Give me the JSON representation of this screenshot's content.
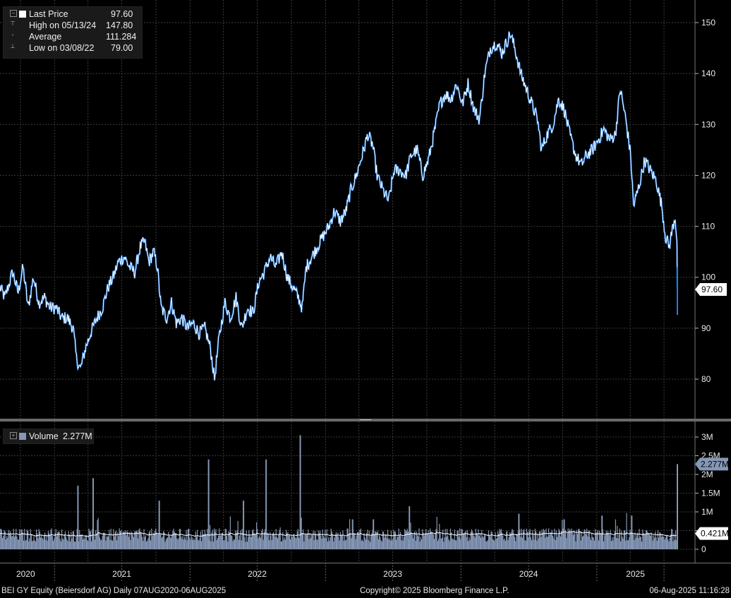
{
  "legend": {
    "last_price_label": "Last Price",
    "last_price_value": "97.60",
    "high_label": "High on 05/13/24",
    "high_value": "147.80",
    "average_label": "Average",
    "average_value": "111.284",
    "low_label": "Low on 03/08/22",
    "low_value": "79.00"
  },
  "volume_legend": {
    "label": "Volume",
    "value": "2.277M"
  },
  "footer": {
    "left": "BEI GY Equity (Beiersdorf AG)  Daily 07AUG2020-06AUG2025",
    "center": "Copyright© 2025 Bloomberg Finance L.P.",
    "right": "06-Aug-2025 11:16:28"
  },
  "colors": {
    "price_line": "#ffffff",
    "price_down": "#1e7fe8",
    "volume_bar": "#8497b5",
    "volume_avg": "#ffffff",
    "background": "#000000"
  },
  "chart_data": [
    {
      "type": "line",
      "series_label": "Last Price",
      "x_ticks": [
        "2020",
        "2021",
        "2022",
        "2023",
        "2024",
        "2025"
      ],
      "y_ticks": [
        80,
        90,
        100,
        110,
        120,
        130,
        140,
        150
      ],
      "ylim": [
        70,
        154
      ],
      "last_value": 97.6,
      "last_value_label": "97.60",
      "high": 147.8,
      "low": 79.0,
      "points": [
        [
          "2020-08-07",
          98
        ],
        [
          "2020-08-20",
          96
        ],
        [
          "2020-09-10",
          101
        ],
        [
          "2020-09-25",
          97
        ],
        [
          "2020-10-08",
          102
        ],
        [
          "2020-10-22",
          94
        ],
        [
          "2020-11-05",
          100
        ],
        [
          "2020-11-20",
          95
        ],
        [
          "2020-12-05",
          96
        ],
        [
          "2020-12-20",
          94
        ],
        [
          "2021-01-05",
          94
        ],
        [
          "2021-01-20",
          92
        ],
        [
          "2021-02-05",
          92
        ],
        [
          "2021-02-20",
          90
        ],
        [
          "2021-03-01",
          84
        ],
        [
          "2021-03-12",
          82
        ],
        [
          "2021-03-25",
          86
        ],
        [
          "2021-04-08",
          89
        ],
        [
          "2021-04-25",
          92
        ],
        [
          "2021-05-10",
          94
        ],
        [
          "2021-05-25",
          98
        ],
        [
          "2021-06-08",
          100
        ],
        [
          "2021-06-22",
          103
        ],
        [
          "2021-07-08",
          104
        ],
        [
          "2021-07-22",
          102
        ],
        [
          "2021-08-05",
          101
        ],
        [
          "2021-08-20",
          106
        ],
        [
          "2021-09-01",
          107
        ],
        [
          "2021-09-12",
          103
        ],
        [
          "2021-09-25",
          105
        ],
        [
          "2021-10-05",
          102
        ],
        [
          "2021-10-15",
          94
        ],
        [
          "2021-10-30",
          92
        ],
        [
          "2021-11-12",
          95
        ],
        [
          "2021-11-25",
          91
        ],
        [
          "2021-12-10",
          92
        ],
        [
          "2021-12-25",
          90
        ],
        [
          "2022-01-10",
          91
        ],
        [
          "2022-01-25",
          89
        ],
        [
          "2022-02-10",
          90
        ],
        [
          "2022-02-25",
          86
        ],
        [
          "2022-03-08",
          80
        ],
        [
          "2022-03-20",
          88
        ],
        [
          "2022-04-05",
          95
        ],
        [
          "2022-04-20",
          92
        ],
        [
          "2022-05-05",
          96
        ],
        [
          "2022-05-20",
          90
        ],
        [
          "2022-06-05",
          94
        ],
        [
          "2022-06-20",
          93
        ],
        [
          "2022-07-05",
          99
        ],
        [
          "2022-07-20",
          101
        ],
        [
          "2022-08-05",
          104
        ],
        [
          "2022-08-20",
          102
        ],
        [
          "2022-09-05",
          105
        ],
        [
          "2022-09-20",
          100
        ],
        [
          "2022-10-05",
          98
        ],
        [
          "2022-10-20",
          96
        ],
        [
          "2022-10-30",
          94
        ],
        [
          "2022-11-10",
          102
        ],
        [
          "2022-11-25",
          104
        ],
        [
          "2022-12-10",
          106
        ],
        [
          "2022-12-25",
          108
        ],
        [
          "2023-01-10",
          110
        ],
        [
          "2023-01-25",
          113
        ],
        [
          "2023-02-10",
          111
        ],
        [
          "2023-02-25",
          113
        ],
        [
          "2023-03-10",
          117
        ],
        [
          "2023-03-25",
          120
        ],
        [
          "2023-04-10",
          124
        ],
        [
          "2023-04-25",
          128
        ],
        [
          "2023-05-08",
          126
        ],
        [
          "2023-05-20",
          120
        ],
        [
          "2023-06-05",
          117
        ],
        [
          "2023-06-20",
          115
        ],
        [
          "2023-07-05",
          121
        ],
        [
          "2023-07-20",
          121
        ],
        [
          "2023-08-05",
          120
        ],
        [
          "2023-08-20",
          124
        ],
        [
          "2023-09-05",
          125
        ],
        [
          "2023-09-20",
          120
        ],
        [
          "2023-10-05",
          123
        ],
        [
          "2023-10-20",
          128
        ],
        [
          "2023-11-05",
          134
        ],
        [
          "2023-11-20",
          136
        ],
        [
          "2023-12-05",
          135
        ],
        [
          "2023-12-20",
          138
        ],
        [
          "2024-01-05",
          134
        ],
        [
          "2024-01-20",
          138
        ],
        [
          "2024-02-05",
          133
        ],
        [
          "2024-02-20",
          131
        ],
        [
          "2024-03-05",
          140
        ],
        [
          "2024-03-20",
          145
        ],
        [
          "2024-04-05",
          146
        ],
        [
          "2024-04-20",
          144
        ],
        [
          "2024-05-13",
          147.8
        ],
        [
          "2024-05-25",
          145
        ],
        [
          "2024-06-10",
          140
        ],
        [
          "2024-06-25",
          137
        ],
        [
          "2024-07-10",
          134
        ],
        [
          "2024-07-25",
          131
        ],
        [
          "2024-08-05",
          125
        ],
        [
          "2024-08-20",
          128
        ],
        [
          "2024-09-05",
          130
        ],
        [
          "2024-09-20",
          135
        ],
        [
          "2024-10-05",
          133
        ],
        [
          "2024-10-20",
          128
        ],
        [
          "2024-11-05",
          124
        ],
        [
          "2024-11-20",
          122
        ],
        [
          "2024-12-05",
          124
        ],
        [
          "2024-12-20",
          125
        ],
        [
          "2025-01-05",
          127
        ],
        [
          "2025-01-20",
          129
        ],
        [
          "2025-02-05",
          127
        ],
        [
          "2025-02-20",
          128
        ],
        [
          "2025-03-05",
          137
        ],
        [
          "2025-03-20",
          131
        ],
        [
          "2025-04-02",
          124
        ],
        [
          "2025-04-10",
          114
        ],
        [
          "2025-04-25",
          118
        ],
        [
          "2025-05-10",
          123
        ],
        [
          "2025-05-25",
          121
        ],
        [
          "2025-06-10",
          119
        ],
        [
          "2025-06-25",
          114
        ],
        [
          "2025-07-05",
          108
        ],
        [
          "2025-07-15",
          106
        ],
        [
          "2025-07-25",
          110
        ],
        [
          "2025-07-31",
          112
        ],
        [
          "2025-08-04",
          108
        ],
        [
          "2025-08-05",
          106
        ],
        [
          "2025-08-06",
          97.6
        ]
      ]
    },
    {
      "type": "bar",
      "series_label": "Volume",
      "y_ticks": [
        0,
        0.5,
        1,
        1.5,
        2,
        2.5,
        3
      ],
      "y_tick_labels": [
        "0",
        "0.5M",
        "1M",
        "1.5M",
        "2M",
        "2.5M",
        "3M"
      ],
      "ylim": [
        0,
        3.2
      ],
      "unit": "M",
      "last_volume": 2.277,
      "last_volume_label": "2.277M",
      "average_volume": 0.421,
      "average_volume_label": "0.421M",
      "baseline_volume": 0.4,
      "spikes": [
        [
          "2021-03-05",
          1.7
        ],
        [
          "2021-04-15",
          1.9
        ],
        [
          "2021-10-10",
          1.3
        ],
        [
          "2022-02-20",
          2.4
        ],
        [
          "2022-05-25",
          1.3
        ],
        [
          "2022-07-25",
          2.4
        ],
        [
          "2022-10-25",
          3.05
        ],
        [
          "2023-03-15",
          0.8
        ],
        [
          "2023-05-10",
          0.8
        ],
        [
          "2023-08-15",
          1.15
        ],
        [
          "2024-06-05",
          0.95
        ],
        [
          "2024-10-05",
          0.8
        ],
        [
          "2025-01-15",
          0.9
        ],
        [
          "2025-04-05",
          0.9
        ],
        [
          "2025-08-06",
          2.277
        ]
      ]
    }
  ]
}
